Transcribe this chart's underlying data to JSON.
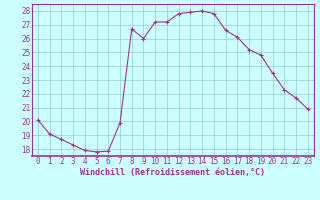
{
  "hours": [
    0,
    1,
    2,
    3,
    4,
    5,
    6,
    7,
    8,
    9,
    10,
    11,
    12,
    13,
    14,
    15,
    16,
    17,
    18,
    19,
    20,
    21,
    22,
    23
  ],
  "values": [
    20.1,
    19.1,
    18.7,
    18.3,
    17.9,
    17.8,
    17.85,
    19.9,
    26.7,
    26.0,
    27.2,
    27.2,
    27.8,
    27.9,
    28.0,
    27.8,
    26.6,
    26.1,
    25.2,
    24.8,
    23.5,
    22.3,
    21.7,
    20.9
  ],
  "line_color": "#993399",
  "marker": "+",
  "background_color": "#ccffff",
  "grid_color": "#99cccc",
  "xlabel": "Windchill (Refroidissement éolien,°C)",
  "ylim": [
    17.5,
    28.5
  ],
  "yticks": [
    18,
    19,
    20,
    21,
    22,
    23,
    24,
    25,
    26,
    27,
    28
  ],
  "tick_fontsize": 5.5,
  "xlabel_fontsize": 6.0
}
